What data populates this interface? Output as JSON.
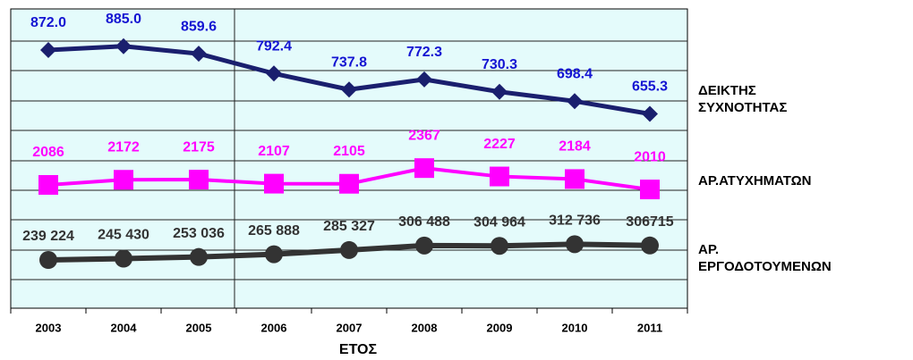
{
  "chart_data": {
    "type": "line",
    "x_label": "ΕΤΟΣ",
    "categories": [
      "2003",
      "2004",
      "2005",
      "2006",
      "2007",
      "2008",
      "2009",
      "2010",
      "2011"
    ],
    "series": [
      {
        "name": "ΔΕΙΚΤΗΣ ΣΥΧΝΟΤΗΤΑΣ",
        "color": "#1a1f6e",
        "label_color": "#1414d2",
        "values": [
          872.0,
          885.0,
          859.6,
          792.4,
          737.8,
          772.3,
          730.3,
          698.4,
          655.3
        ],
        "value_labels": [
          "872.0",
          "885.0",
          "859.6",
          "792.4",
          "737.8",
          "772.3",
          "730.3",
          "698.4",
          "655.3"
        ]
      },
      {
        "name": "ΑΡ.ΑΤΥΧΗΜΑΤΩΝ",
        "color": "#ff00ff",
        "label_color": "#ff00ff",
        "values": [
          2086,
          2172,
          2175,
          2107,
          2105,
          2367,
          2227,
          2184,
          2010
        ]
      },
      {
        "name": "ΑΡ. ΕΡΓΟΔΟΤΟΥΜΕΝΩΝ",
        "color": "#333333",
        "label_color": "#333333",
        "values": [
          239224,
          245430,
          253036,
          265888,
          285327,
          306488,
          304964,
          312736,
          306715
        ],
        "value_labels": [
          "239 224",
          "245 430",
          "253 036",
          "265 888",
          "285 327",
          "306 488",
          "304 964",
          "312 736",
          "306715"
        ]
      }
    ]
  }
}
